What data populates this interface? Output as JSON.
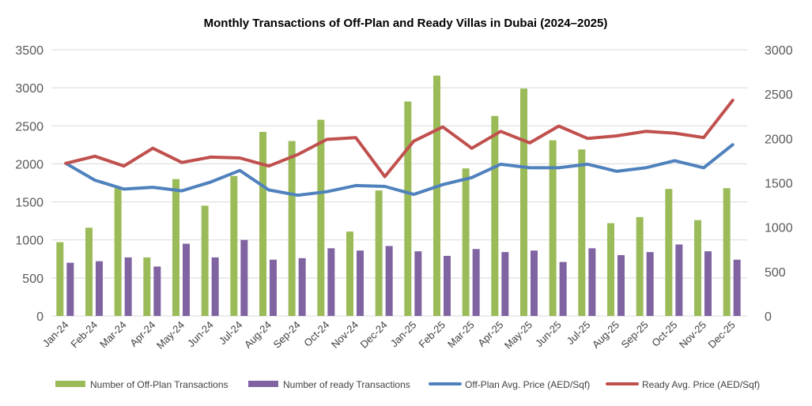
{
  "chart_data": {
    "type": "bar+line",
    "title": "Monthly Transactions of Off-Plan and Ready Villas in Dubai (2024–2025)",
    "categories": [
      "Jan-24",
      "Feb-24",
      "Mar-24",
      "Apr-24",
      "May-24",
      "Jun-24",
      "Jul-24",
      "Aug-24",
      "Sep-24",
      "Oct-24",
      "Nov-24",
      "Dec-24",
      "Jan-25",
      "Feb-25",
      "Mar-25",
      "Apr-25",
      "May-25",
      "Jun-25",
      "Jul-25",
      "Aug-25",
      "Sep-25",
      "Oct-25",
      "Nov-25",
      "Dec-25"
    ],
    "y_left": {
      "min": 0,
      "max": 3500,
      "ticks": [
        0,
        500,
        1000,
        1500,
        2000,
        2500,
        3000,
        3500
      ],
      "tick_labels": [
        "0",
        "500",
        "1000",
        "1500",
        "2000",
        "2500",
        "3000",
        "3500"
      ]
    },
    "y_right": {
      "min": 0,
      "max": 3000,
      "ticks": [
        0,
        500,
        1000,
        1500,
        2000,
        2500,
        3000
      ],
      "tick_labels": [
        "0",
        "500",
        "1000",
        "1500",
        "2000",
        "2500",
        "3000"
      ]
    },
    "grid": true,
    "legend_position": "bottom",
    "series": [
      {
        "name": "Number of Off-Plan Transactions",
        "kind": "bar",
        "axis": "left",
        "color": "#9bbb59",
        "values": [
          970,
          1160,
          1680,
          770,
          1800,
          1450,
          1840,
          2420,
          2300,
          2580,
          1110,
          1650,
          2820,
          3160,
          1940,
          2630,
          2990,
          2310,
          2190,
          1220,
          1300,
          1670,
          1260,
          1680
        ]
      },
      {
        "name": "Number of ready Transactions",
        "kind": "bar",
        "axis": "left",
        "color": "#8064a2",
        "values": [
          700,
          720,
          770,
          650,
          950,
          770,
          1000,
          740,
          760,
          890,
          860,
          920,
          850,
          790,
          880,
          840,
          860,
          710,
          890,
          800,
          840,
          940,
          850,
          740
        ]
      },
      {
        "name": "Off-Plan Avg. Price (AED/Sqf)",
        "kind": "line",
        "axis": "right",
        "color": "#4f81bd",
        "values": [
          1720,
          1530,
          1430,
          1450,
          1410,
          1510,
          1640,
          1420,
          1360,
          1400,
          1470,
          1460,
          1370,
          1480,
          1560,
          1710,
          1670,
          1670,
          1710,
          1630,
          1670,
          1750,
          1670,
          1930
        ]
      },
      {
        "name": "Ready Avg. Price (AED/Sqf)",
        "kind": "line",
        "axis": "right",
        "color": "#c0504d",
        "values": [
          1720,
          1800,
          1690,
          1890,
          1730,
          1790,
          1780,
          1690,
          1820,
          1990,
          2010,
          1570,
          1970,
          2130,
          1890,
          2080,
          1950,
          2140,
          2000,
          2030,
          2080,
          2060,
          2010,
          2430
        ]
      }
    ]
  }
}
